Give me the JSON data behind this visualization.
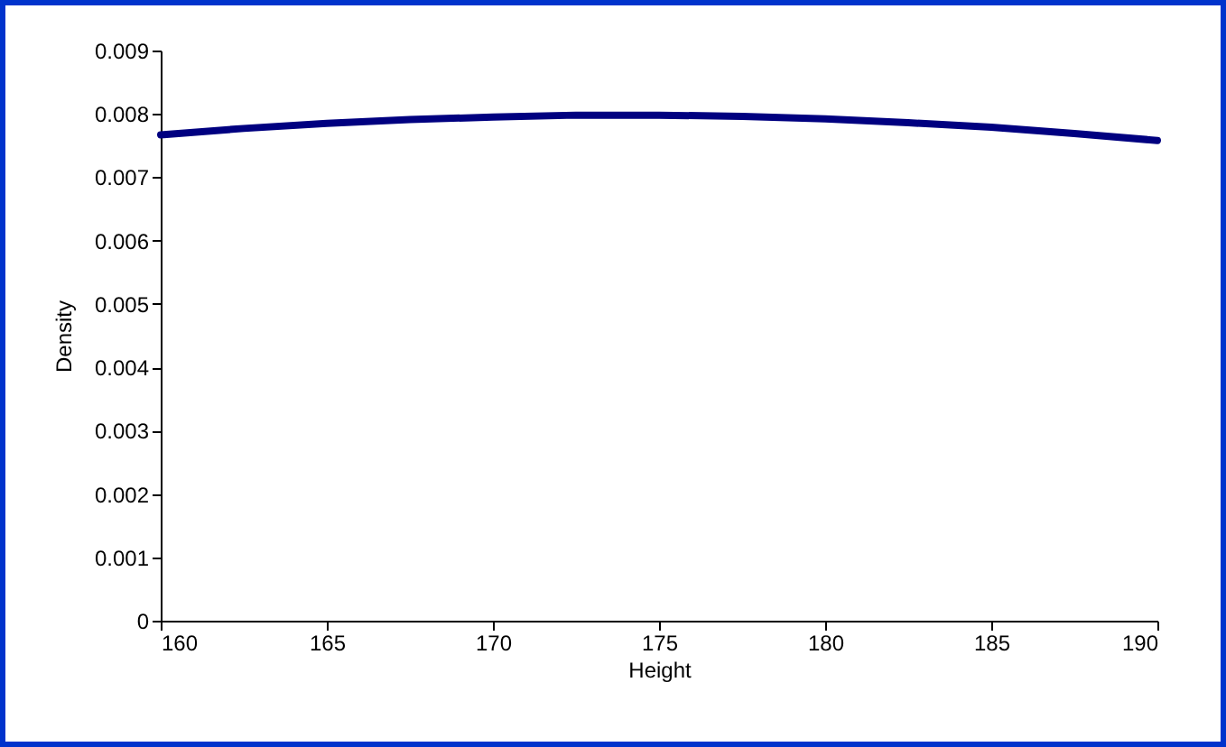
{
  "chart_data": {
    "type": "line",
    "xlabel": "Height",
    "ylabel": "Density",
    "x": [
      160,
      162.5,
      165,
      167.5,
      170,
      172.5,
      175,
      177.5,
      180,
      182.5,
      185,
      187.5,
      190
    ],
    "series": [
      {
        "color": "#000080",
        "values": [
          0.00767,
          0.00777,
          0.00785,
          0.00791,
          0.00795,
          0.00798,
          0.00798,
          0.00796,
          0.00792,
          0.00786,
          0.00779,
          0.00769,
          0.00758
        ]
      }
    ],
    "xlim": [
      160,
      190
    ],
    "xticks": [
      160,
      165,
      170,
      175,
      180,
      185,
      190
    ],
    "ylim": [
      0,
      0.009
    ],
    "yticks": [
      0,
      0.001,
      0.002,
      0.003,
      0.004,
      0.005,
      0.006,
      0.007,
      0.008,
      0.009
    ],
    "grid": false,
    "marker": "none",
    "line_style": "solid"
  }
}
